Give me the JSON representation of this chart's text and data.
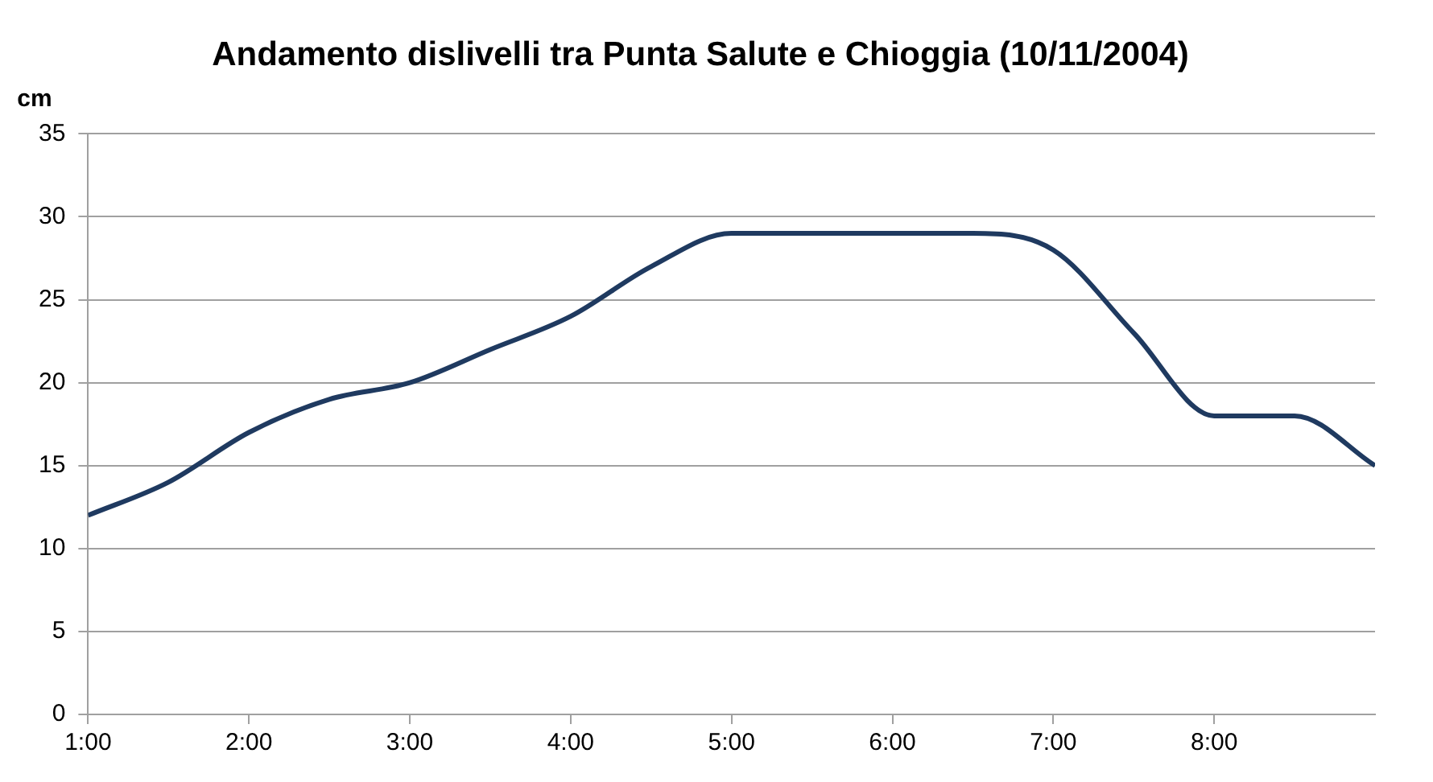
{
  "chart_data": {
    "type": "line",
    "title": "Andamento dislivelli tra Punta Salute e Chioggia (10/11/2004)",
    "ylabel": "cm",
    "x": [
      1,
      1.5,
      2,
      2.5,
      3,
      3.5,
      4,
      4.5,
      5,
      5.5,
      6,
      6.5,
      7,
      7.5,
      8,
      8.5,
      9
    ],
    "series": [
      {
        "color": "#1f3a60",
        "values": [
          12,
          14,
          17,
          19,
          20,
          22,
          24,
          27,
          29,
          29,
          29,
          29,
          28,
          23,
          18,
          18,
          15
        ]
      }
    ],
    "xlim": [
      1,
      9
    ],
    "xticks": [
      {
        "value": 1,
        "label": "1:00"
      },
      {
        "value": 2,
        "label": "2:00"
      },
      {
        "value": 3,
        "label": "3:00"
      },
      {
        "value": 4,
        "label": "4:00"
      },
      {
        "value": 5,
        "label": "5:00"
      },
      {
        "value": 6,
        "label": "6:00"
      },
      {
        "value": 7,
        "label": "7:00"
      },
      {
        "value": 8,
        "label": "8:00"
      }
    ],
    "ylim": [
      0,
      35
    ],
    "yticks": [
      0,
      5,
      10,
      15,
      20,
      25,
      30,
      35
    ],
    "grid": "y",
    "legend": false,
    "marker": "none",
    "line_style": "solid"
  }
}
